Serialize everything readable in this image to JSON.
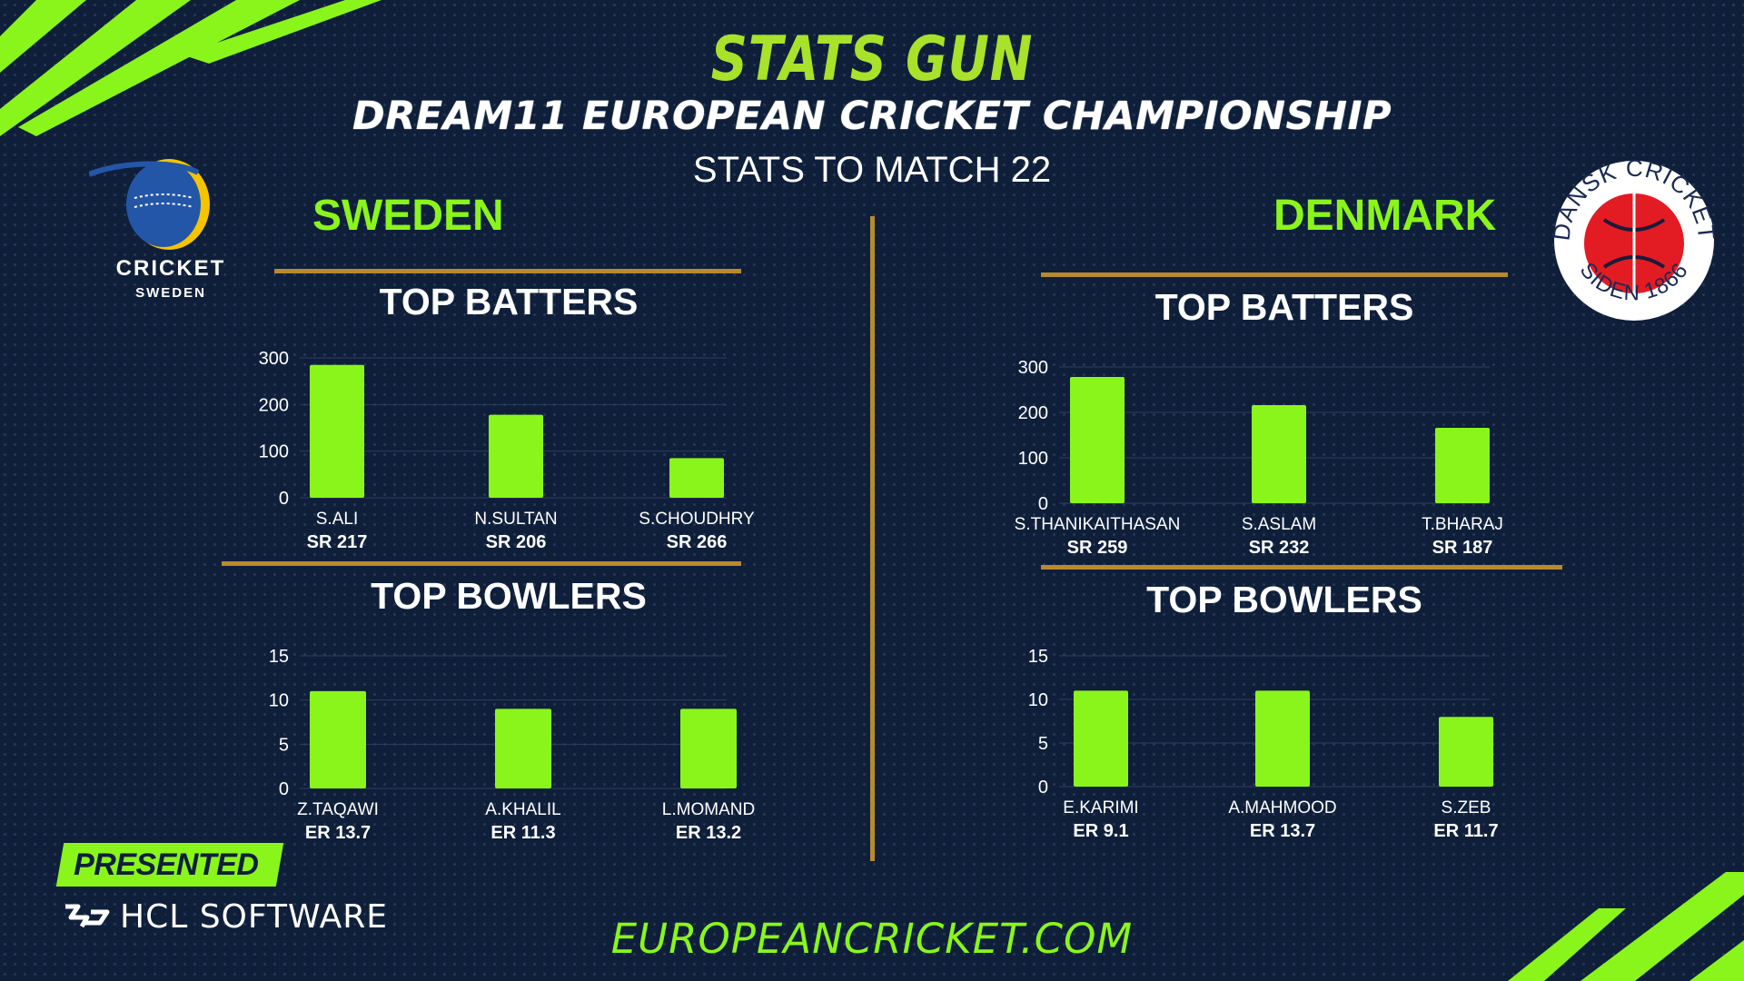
{
  "header": {
    "brand": "STATS GUN",
    "title": "DREAM11 EUROPEAN CRICKET CHAMPIONSHIP",
    "subtitle": "STATS TO MATCH 22"
  },
  "colors": {
    "background": "#0f1f3a",
    "accent_green": "#8af51a",
    "divider_gold": "#b88a2e",
    "text": "#ffffff",
    "sweden_blue": "#2456a8",
    "sweden_yellow": "#f5c400",
    "denmark_red": "#e31b23"
  },
  "teams": {
    "left": {
      "name": "SWEDEN",
      "logo": {
        "icon": "cricket-sweden-logo",
        "line1": "CRICKET",
        "line2": "SWEDEN"
      }
    },
    "right": {
      "name": "DENMARK",
      "logo": {
        "icon": "dansk-cricket-logo",
        "top_text": "DANSK CRICKET",
        "bottom_text": "SIDEN 1866"
      }
    }
  },
  "sections": {
    "batters": "TOP BATTERS",
    "bowlers": "TOP BOWLERS"
  },
  "footer": {
    "presented_by": "PRESENTED BY",
    "sponsor": "HCL SOFTWARE",
    "sponsor_icon": "hcl-software-logo-icon",
    "website": "EUROPEANCRICKET.COM"
  },
  "chart_data": [
    {
      "type": "bar",
      "team": "SWEDEN",
      "title": "TOP BATTERS",
      "categories": [
        "S.ALI",
        "N.SULTAN",
        "S.CHOUDHRY"
      ],
      "values": [
        285,
        178,
        85
      ],
      "sublabels": [
        "SR 217",
        "SR 206",
        "SR 266"
      ],
      "ylim": [
        0,
        300
      ],
      "yticks": [
        0,
        100,
        200,
        300
      ],
      "grid": true,
      "legend": "none",
      "color": "#8af51a"
    },
    {
      "type": "bar",
      "team": "SWEDEN",
      "title": "TOP BOWLERS",
      "categories": [
        "Z.TAQAWI",
        "A.KHALIL",
        "L.MOMAND"
      ],
      "values": [
        11,
        9,
        9
      ],
      "sublabels": [
        "ER 13.7",
        "ER 11.3",
        "ER 13.2"
      ],
      "ylim": [
        0,
        15
      ],
      "yticks": [
        0,
        5,
        10,
        15
      ],
      "grid": true,
      "legend": "none",
      "color": "#8af51a"
    },
    {
      "type": "bar",
      "team": "DENMARK",
      "title": "TOP BATTERS",
      "categories": [
        "S.THANIKAITHASAN",
        "S.ASLAM",
        "T.BHARAJ"
      ],
      "values": [
        278,
        216,
        166
      ],
      "sublabels": [
        "SR 259",
        "SR 232",
        "SR 187"
      ],
      "ylim": [
        0,
        300
      ],
      "yticks": [
        0,
        100,
        200,
        300
      ],
      "grid": true,
      "legend": "none",
      "color": "#8af51a"
    },
    {
      "type": "bar",
      "team": "DENMARK",
      "title": "TOP BOWLERS",
      "categories": [
        "E.KARIMI",
        "A.MAHMOOD",
        "S.ZEB"
      ],
      "values": [
        11,
        11,
        8
      ],
      "sublabels": [
        "ER 9.1",
        "ER 13.7",
        "ER 11.7"
      ],
      "ylim": [
        0,
        15
      ],
      "yticks": [
        0,
        5,
        10,
        15
      ],
      "grid": true,
      "legend": "none",
      "color": "#8af51a"
    }
  ]
}
